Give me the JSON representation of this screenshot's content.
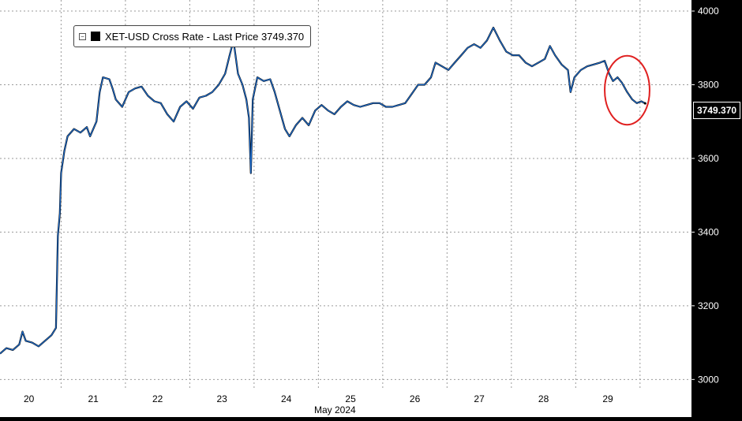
{
  "chart_data": {
    "type": "line",
    "title": "",
    "legend": {
      "label": "XET-USD Cross Rate - Last Price 3749.370",
      "placement": "top-left"
    },
    "last_price_label": "3749.370",
    "xlabel": "May 2024",
    "ylabel": "",
    "x_tick_labels": [
      "20",
      "21",
      "22",
      "23",
      "24",
      "25",
      "26",
      "27",
      "28",
      "29"
    ],
    "y_tick_labels": [
      "3000",
      "3200",
      "3400",
      "3600",
      "3800",
      "4000"
    ],
    "ylim": [
      2975,
      4030
    ],
    "xlim": [
      19.55,
      30.3
    ],
    "y_axis_side": "right",
    "grid": "dotted",
    "colors": {
      "background": "#ffffff",
      "line": "#000000",
      "line_highlight": "#1f6fd1",
      "grid": "#9a9a9a",
      "annotation_circle": "#e02020"
    },
    "annotations": [
      {
        "type": "circle",
        "color": "#e02020",
        "x_range": [
          29.0,
          29.6
        ],
        "y_range": [
          3700,
          3870
        ]
      }
    ],
    "series": [
      {
        "name": "XET-USD Cross Rate",
        "points": [
          [
            19.55,
            3070
          ],
          [
            19.65,
            3085
          ],
          [
            19.75,
            3080
          ],
          [
            19.85,
            3095
          ],
          [
            19.9,
            3130
          ],
          [
            19.95,
            3105
          ],
          [
            20.05,
            3100
          ],
          [
            20.15,
            3090
          ],
          [
            20.25,
            3105
          ],
          [
            20.35,
            3120
          ],
          [
            20.42,
            3140
          ],
          [
            20.45,
            3390
          ],
          [
            20.48,
            3450
          ],
          [
            20.5,
            3560
          ],
          [
            20.55,
            3620
          ],
          [
            20.6,
            3660
          ],
          [
            20.7,
            3680
          ],
          [
            20.8,
            3670
          ],
          [
            20.9,
            3685
          ],
          [
            20.95,
            3660
          ],
          [
            21.05,
            3700
          ],
          [
            21.1,
            3780
          ],
          [
            21.15,
            3820
          ],
          [
            21.25,
            3815
          ],
          [
            21.3,
            3790
          ],
          [
            21.35,
            3760
          ],
          [
            21.45,
            3740
          ],
          [
            21.55,
            3780
          ],
          [
            21.65,
            3790
          ],
          [
            21.75,
            3795
          ],
          [
            21.85,
            3770
          ],
          [
            21.95,
            3755
          ],
          [
            22.05,
            3750
          ],
          [
            22.15,
            3720
          ],
          [
            22.25,
            3700
          ],
          [
            22.35,
            3740
          ],
          [
            22.45,
            3755
          ],
          [
            22.55,
            3735
          ],
          [
            22.65,
            3765
          ],
          [
            22.75,
            3770
          ],
          [
            22.85,
            3780
          ],
          [
            22.95,
            3800
          ],
          [
            23.05,
            3830
          ],
          [
            23.12,
            3880
          ],
          [
            23.18,
            3920
          ],
          [
            23.25,
            3830
          ],
          [
            23.32,
            3800
          ],
          [
            23.38,
            3760
          ],
          [
            23.42,
            3710
          ],
          [
            23.45,
            3560
          ],
          [
            23.48,
            3760
          ],
          [
            23.55,
            3820
          ],
          [
            23.65,
            3810
          ],
          [
            23.75,
            3815
          ],
          [
            23.82,
            3780
          ],
          [
            23.9,
            3730
          ],
          [
            23.98,
            3680
          ],
          [
            24.05,
            3660
          ],
          [
            24.15,
            3690
          ],
          [
            24.25,
            3710
          ],
          [
            24.35,
            3690
          ],
          [
            24.45,
            3730
          ],
          [
            24.55,
            3745
          ],
          [
            24.65,
            3730
          ],
          [
            24.75,
            3720
          ],
          [
            24.85,
            3740
          ],
          [
            24.95,
            3755
          ],
          [
            25.05,
            3745
          ],
          [
            25.15,
            3740
          ],
          [
            25.25,
            3745
          ],
          [
            25.35,
            3750
          ],
          [
            25.45,
            3750
          ],
          [
            25.55,
            3740
          ],
          [
            25.65,
            3740
          ],
          [
            25.75,
            3745
          ],
          [
            25.85,
            3750
          ],
          [
            25.95,
            3775
          ],
          [
            26.05,
            3800
          ],
          [
            26.15,
            3800
          ],
          [
            26.25,
            3820
          ],
          [
            26.32,
            3860
          ],
          [
            26.42,
            3850
          ],
          [
            26.52,
            3840
          ],
          [
            26.62,
            3860
          ],
          [
            26.72,
            3880
          ],
          [
            26.82,
            3900
          ],
          [
            26.92,
            3910
          ],
          [
            27.02,
            3900
          ],
          [
            27.12,
            3920
          ],
          [
            27.22,
            3955
          ],
          [
            27.32,
            3920
          ],
          [
            27.42,
            3890
          ],
          [
            27.52,
            3880
          ],
          [
            27.62,
            3880
          ],
          [
            27.72,
            3860
          ],
          [
            27.82,
            3850
          ],
          [
            27.92,
            3860
          ],
          [
            28.02,
            3870
          ],
          [
            28.1,
            3905
          ],
          [
            28.18,
            3880
          ],
          [
            28.28,
            3855
          ],
          [
            28.38,
            3840
          ],
          [
            28.42,
            3780
          ],
          [
            28.48,
            3820
          ],
          [
            28.58,
            3840
          ],
          [
            28.68,
            3850
          ],
          [
            28.78,
            3855
          ],
          [
            28.88,
            3860
          ],
          [
            28.95,
            3865
          ],
          [
            29.02,
            3830
          ],
          [
            29.08,
            3810
          ],
          [
            29.15,
            3820
          ],
          [
            29.22,
            3805
          ],
          [
            29.3,
            3780
          ],
          [
            29.38,
            3760
          ],
          [
            29.45,
            3750
          ],
          [
            29.52,
            3755
          ],
          [
            29.58,
            3749.37
          ]
        ]
      }
    ]
  }
}
